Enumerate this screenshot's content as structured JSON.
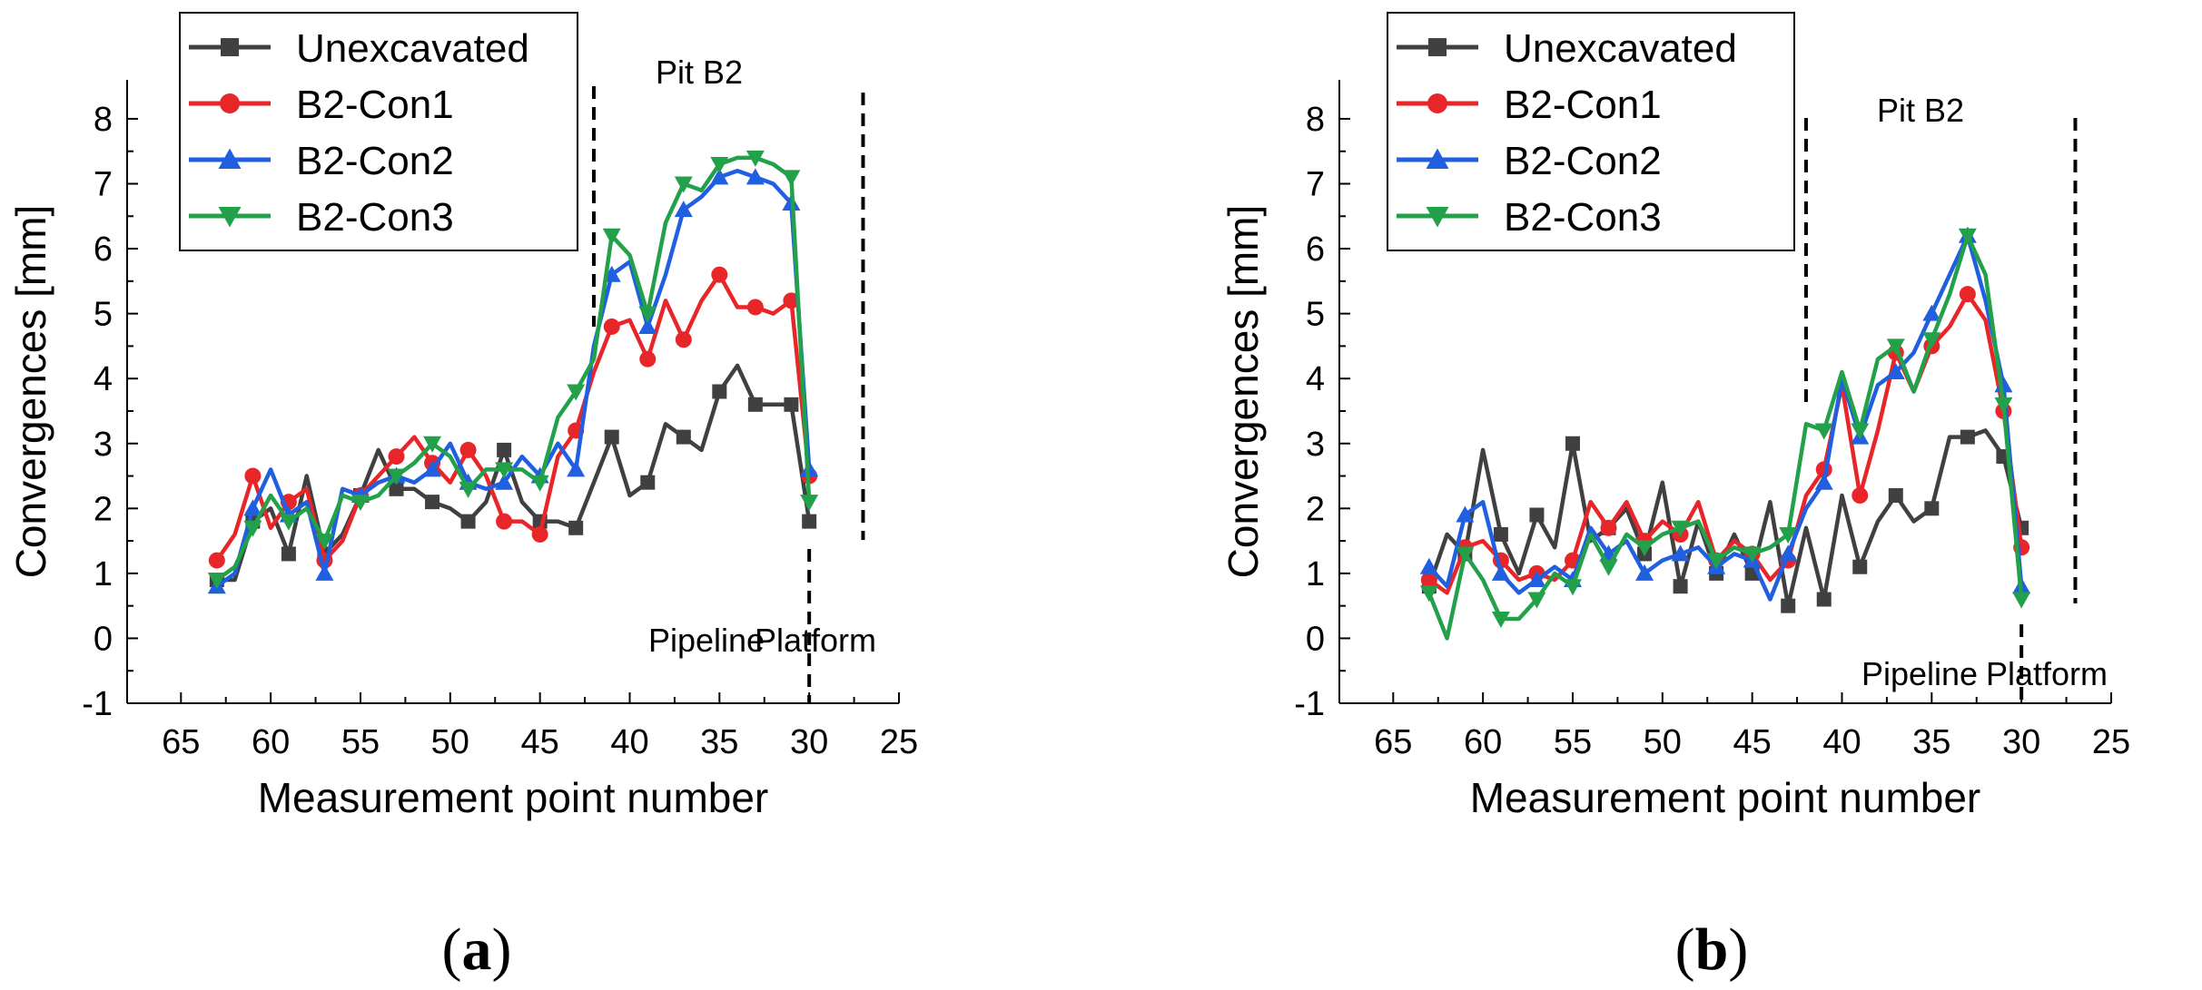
{
  "colors": {
    "Unexcavated": "#404040",
    "B2-Con1": "#e8262a",
    "B2-Con2": "#1f5fe0",
    "B2-Con3": "#22a04a"
  },
  "chart_data": [
    {
      "type": "line",
      "panel_label": "a",
      "xlabel": "Measurement point number",
      "ylabel": "Convergences [mm]",
      "xlim": [
        68,
        25
      ],
      "ylim": [
        -1,
        8.6
      ],
      "xticks": [
        65,
        60,
        55,
        50,
        45,
        40,
        35,
        30,
        25
      ],
      "yticks": [
        -1,
        0,
        1,
        2,
        3,
        4,
        5,
        6,
        7,
        8
      ],
      "legend_position": "top-left",
      "annotations": {
        "pit": "Pit B2",
        "left_zone": "Pipeline",
        "right_zone": "Platform"
      },
      "reference_lines": [
        42,
        30,
        27
      ],
      "x": [
        63,
        62,
        61,
        60,
        59,
        58,
        57,
        56,
        55,
        54,
        53,
        52,
        51,
        50,
        49,
        48,
        47,
        46,
        45,
        44,
        43,
        42,
        41,
        40,
        39,
        38,
        37,
        36,
        35,
        34,
        33,
        32,
        31,
        30
      ],
      "series": [
        {
          "name": "Unexcavated",
          "marker": "square",
          "values": [
            0.9,
            0.9,
            1.8,
            2.0,
            1.3,
            2.5,
            1.3,
            1.6,
            2.2,
            2.9,
            2.3,
            2.3,
            2.1,
            2.0,
            1.8,
            2.1,
            2.9,
            2.1,
            1.8,
            1.8,
            1.7,
            2.4,
            3.1,
            2.2,
            2.4,
            3.3,
            3.1,
            2.9,
            3.8,
            4.2,
            3.6,
            3.6,
            3.6,
            1.8
          ]
        },
        {
          "name": "B2-Con1",
          "marker": "circle",
          "values": [
            1.2,
            1.6,
            2.5,
            1.7,
            2.1,
            2.3,
            1.2,
            1.5,
            2.2,
            2.5,
            2.8,
            3.1,
            2.7,
            2.4,
            2.9,
            2.5,
            1.8,
            1.8,
            1.6,
            2.8,
            3.2,
            4.1,
            4.8,
            4.9,
            4.3,
            5.2,
            4.6,
            5.2,
            5.6,
            5.1,
            5.1,
            5.0,
            5.2,
            2.5
          ]
        },
        {
          "name": "B2-Con2",
          "marker": "triangle-up",
          "values": [
            0.8,
            1.0,
            2.0,
            2.6,
            1.9,
            2.1,
            1.0,
            2.3,
            2.2,
            2.4,
            2.5,
            2.4,
            2.6,
            3.0,
            2.4,
            2.3,
            2.4,
            2.8,
            2.5,
            3.0,
            2.6,
            4.5,
            5.6,
            5.8,
            4.8,
            5.6,
            6.6,
            6.8,
            7.1,
            7.2,
            7.1,
            7.0,
            6.7,
            2.6
          ]
        },
        {
          "name": "B2-Con3",
          "marker": "triangle-down",
          "values": [
            0.9,
            1.1,
            1.7,
            2.2,
            1.8,
            2.0,
            1.5,
            2.2,
            2.1,
            2.2,
            2.5,
            2.7,
            3.0,
            2.8,
            2.3,
            2.6,
            2.6,
            2.6,
            2.4,
            3.4,
            3.8,
            4.3,
            6.2,
            5.9,
            5.0,
            6.4,
            7.0,
            6.9,
            7.3,
            7.4,
            7.4,
            7.3,
            7.1,
            2.1
          ]
        }
      ]
    },
    {
      "type": "line",
      "panel_label": "b",
      "xlabel": "Measurement point number",
      "ylabel": "Convergences [mm]",
      "xlim": [
        68,
        25
      ],
      "ylim": [
        -1,
        8.6
      ],
      "xticks": [
        65,
        60,
        55,
        50,
        45,
        40,
        35,
        30,
        25
      ],
      "yticks": [
        -1,
        0,
        1,
        2,
        3,
        4,
        5,
        6,
        7,
        8
      ],
      "legend_position": "top-left",
      "annotations": {
        "pit": "Pit B2",
        "left_zone": "Pipeline",
        "right_zone": "Platform"
      },
      "reference_lines": [
        42,
        30,
        27
      ],
      "x": [
        63,
        62,
        61,
        60,
        59,
        58,
        57,
        56,
        55,
        54,
        53,
        52,
        51,
        50,
        49,
        48,
        47,
        46,
        45,
        44,
        43,
        42,
        41,
        40,
        39,
        38,
        37,
        36,
        35,
        34,
        33,
        32,
        31,
        30
      ],
      "series": [
        {
          "name": "Unexcavated",
          "marker": "square",
          "values": [
            0.8,
            1.6,
            1.3,
            2.9,
            1.6,
            1.0,
            1.9,
            1.4,
            3.0,
            1.5,
            1.7,
            2.0,
            1.3,
            2.4,
            0.8,
            1.8,
            1.0,
            1.6,
            1.0,
            2.1,
            0.5,
            1.7,
            0.6,
            2.2,
            1.1,
            1.8,
            2.2,
            1.8,
            2.0,
            3.1,
            3.1,
            3.2,
            2.8,
            1.7
          ]
        },
        {
          "name": "B2-Con1",
          "marker": "circle",
          "values": [
            0.9,
            0.7,
            1.4,
            1.5,
            1.2,
            0.9,
            1.0,
            0.9,
            1.2,
            2.1,
            1.7,
            2.1,
            1.5,
            1.8,
            1.6,
            2.1,
            1.2,
            1.5,
            1.3,
            0.9,
            1.2,
            2.2,
            2.6,
            3.9,
            2.2,
            3.2,
            4.4,
            3.8,
            4.5,
            4.8,
            5.3,
            4.9,
            3.5,
            1.4
          ]
        },
        {
          "name": "B2-Con2",
          "marker": "triangle-up",
          "values": [
            1.1,
            0.8,
            1.9,
            2.1,
            1.0,
            0.7,
            0.9,
            1.1,
            0.9,
            1.7,
            1.3,
            1.5,
            1.0,
            1.2,
            1.3,
            1.4,
            1.1,
            1.3,
            1.2,
            0.6,
            1.3,
            2.0,
            2.4,
            4.0,
            3.1,
            3.9,
            4.1,
            4.4,
            5.0,
            5.6,
            6.2,
            5.2,
            3.9,
            0.8
          ]
        },
        {
          "name": "B2-Con3",
          "marker": "triangle-down",
          "values": [
            0.7,
            0.0,
            1.3,
            0.9,
            0.3,
            0.3,
            0.6,
            1.0,
            0.8,
            1.6,
            1.1,
            1.6,
            1.4,
            1.6,
            1.7,
            1.8,
            1.2,
            1.4,
            1.3,
            1.4,
            1.6,
            3.3,
            3.2,
            4.1,
            3.2,
            4.3,
            4.5,
            3.8,
            4.6,
            5.3,
            6.2,
            5.6,
            3.6,
            0.6
          ]
        }
      ]
    }
  ]
}
